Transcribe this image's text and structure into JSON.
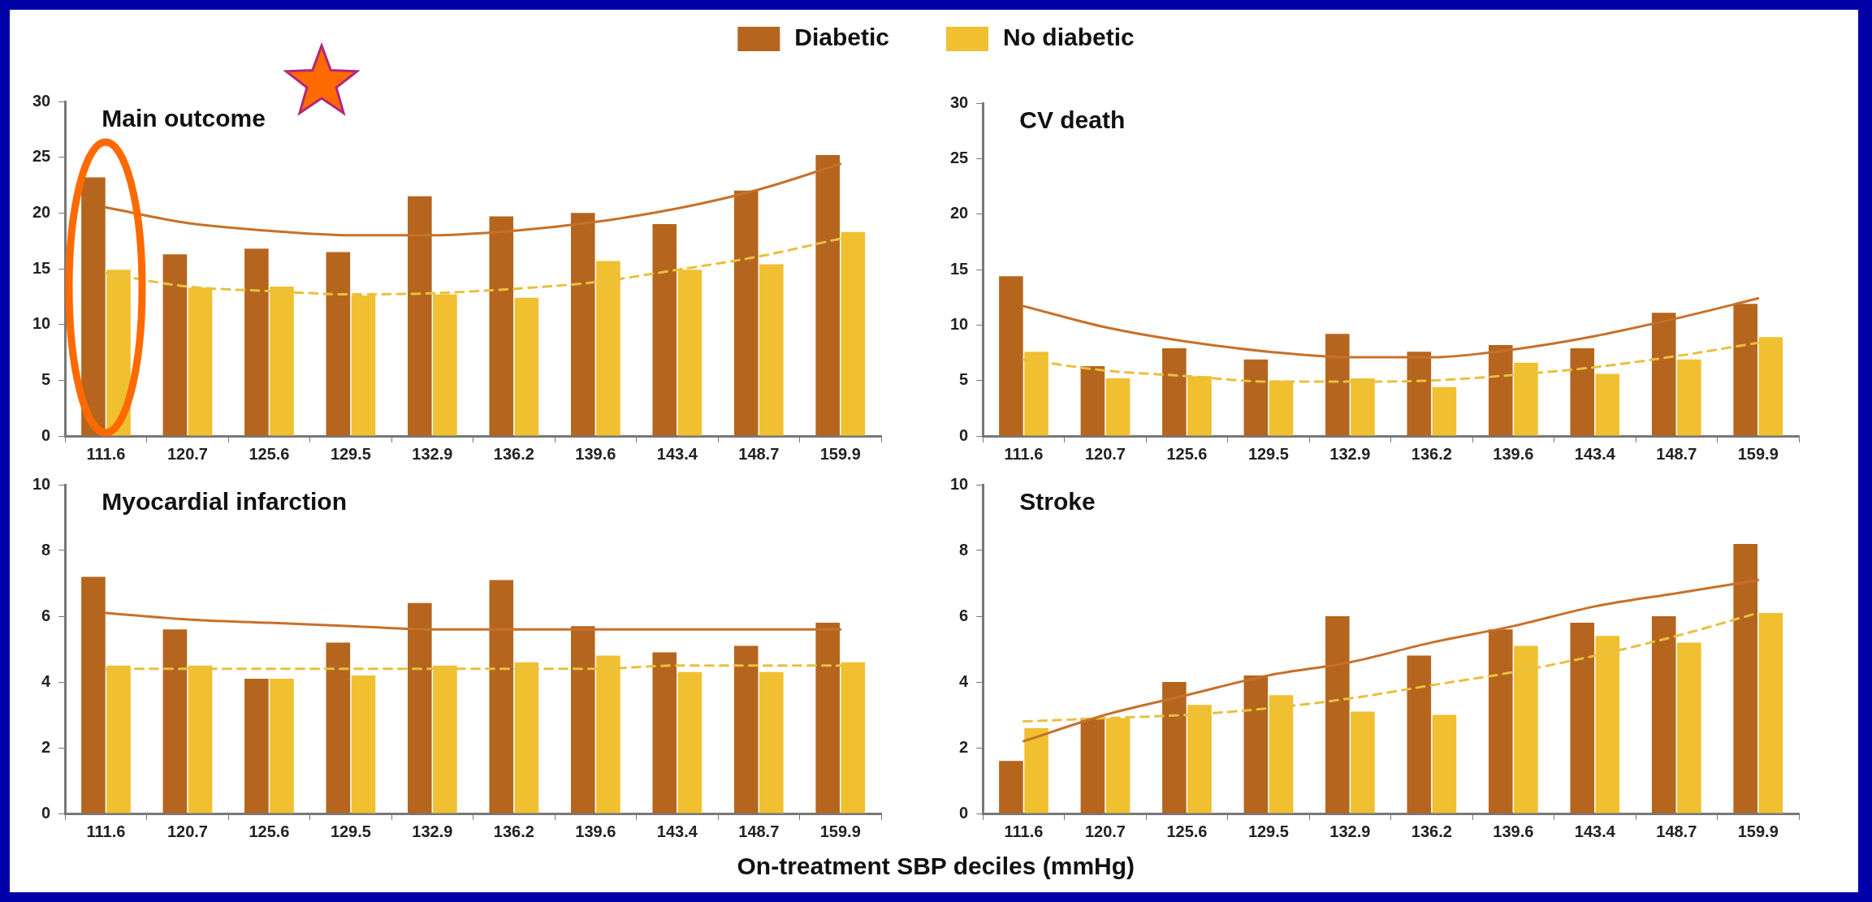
{
  "chart_data": [
    {
      "type": "bar",
      "title": "Main outcome",
      "legend": "top",
      "categories": [
        "111.6",
        "120.7",
        "125.6",
        "129.5",
        "132.9",
        "136.2",
        "139.6",
        "143.4",
        "148.7",
        "159.9"
      ],
      "ylim": [
        0,
        30
      ],
      "yticks": [
        0,
        5,
        10,
        15,
        20,
        25,
        30
      ],
      "series": [
        {
          "name": "Diabetic",
          "color": "#b5651d",
          "values": [
            23.2,
            16.3,
            16.8,
            16.5,
            21.5,
            19.7,
            20.0,
            19.0,
            22.0,
            25.2
          ]
        },
        {
          "name": "No diabetic",
          "color": "#f0c030",
          "values": [
            14.9,
            13.3,
            13.4,
            12.6,
            12.7,
            12.4,
            15.7,
            14.9,
            15.4,
            18.3
          ]
        },
        {
          "type": "line",
          "color": "#c8702a",
          "line_style": "solid",
          "values": [
            20.5,
            19.1,
            18.4,
            18.0,
            18.0,
            18.4,
            19.2,
            20.4,
            22.1,
            24.4
          ]
        },
        {
          "type": "line",
          "color": "#e8c040",
          "line_style": "dashed",
          "values": [
            14.6,
            13.4,
            13.0,
            12.7,
            12.8,
            13.2,
            13.8,
            14.9,
            16.1,
            17.7
          ]
        }
      ]
    },
    {
      "type": "bar",
      "title": "CV death",
      "categories": [
        "111.6",
        "120.7",
        "125.6",
        "129.5",
        "132.9",
        "136.2",
        "139.6",
        "143.4",
        "148.7",
        "159.9"
      ],
      "ylim": [
        0,
        30
      ],
      "yticks": [
        0,
        5,
        10,
        15,
        20,
        25,
        30
      ],
      "series": [
        {
          "color": "#b5651d",
          "values": [
            14.4,
            6.3,
            7.9,
            6.9,
            9.2,
            7.6,
            8.2,
            7.9,
            11.1,
            11.9
          ]
        },
        {
          "color": "#f0c030",
          "values": [
            7.6,
            5.2,
            5.4,
            5.0,
            5.2,
            4.4,
            6.6,
            5.6,
            6.9,
            8.9
          ]
        },
        {
          "type": "line",
          "color": "#c8702a",
          "line_style": "solid",
          "values": [
            11.7,
            9.8,
            8.5,
            7.6,
            7.1,
            7.1,
            7.8,
            9.0,
            10.6,
            12.4
          ]
        },
        {
          "type": "line",
          "color": "#e8c040",
          "line_style": "dashed",
          "values": [
            6.9,
            5.9,
            5.4,
            4.9,
            4.9,
            5.0,
            5.5,
            6.2,
            7.2,
            8.4
          ]
        }
      ]
    },
    {
      "type": "bar",
      "title": "Myocardial infarction",
      "xlabel": "On-treatment SBP deciles (mmHg)",
      "categories": [
        "111.6",
        "120.7",
        "125.6",
        "129.5",
        "132.9",
        "136.2",
        "139.6",
        "143.4",
        "148.7",
        "159.9"
      ],
      "ylim": [
        0,
        10
      ],
      "yticks": [
        0,
        2,
        4,
        6,
        8,
        10
      ],
      "series": [
        {
          "color": "#b5651d",
          "values": [
            7.2,
            5.6,
            4.1,
            5.2,
            6.4,
            7.1,
            5.7,
            4.9,
            5.1,
            5.8
          ]
        },
        {
          "color": "#f0c030",
          "values": [
            4.5,
            4.5,
            4.1,
            4.2,
            4.5,
            4.6,
            4.8,
            4.3,
            4.3,
            4.6
          ]
        },
        {
          "type": "line",
          "color": "#c8702a",
          "line_style": "solid",
          "values": [
            6.1,
            5.9,
            5.8,
            5.7,
            5.6,
            5.6,
            5.6,
            5.6,
            5.6,
            5.6
          ]
        },
        {
          "type": "line",
          "color": "#e8c040",
          "line_style": "dashed",
          "values": [
            4.4,
            4.4,
            4.4,
            4.4,
            4.4,
            4.4,
            4.4,
            4.5,
            4.5,
            4.5
          ]
        }
      ]
    },
    {
      "type": "bar",
      "title": "Stroke",
      "categories": [
        "111.6",
        "120.7",
        "125.6",
        "129.5",
        "132.9",
        "136.2",
        "139.6",
        "143.4",
        "148.7",
        "159.9"
      ],
      "ylim": [
        0,
        10
      ],
      "yticks": [
        0,
        2,
        4,
        6,
        8,
        10
      ],
      "series": [
        {
          "color": "#b5651d",
          "values": [
            1.6,
            2.9,
            4.0,
            4.2,
            6.0,
            4.8,
            5.6,
            5.8,
            6.0,
            8.2
          ]
        },
        {
          "color": "#f0c030",
          "values": [
            2.6,
            2.9,
            3.3,
            3.6,
            3.1,
            3.0,
            5.1,
            5.4,
            5.2,
            6.1
          ]
        },
        {
          "type": "line",
          "color": "#c8702a",
          "line_style": "solid",
          "values": [
            2.2,
            3.0,
            3.6,
            4.2,
            4.6,
            5.2,
            5.7,
            6.3,
            6.7,
            7.1
          ]
        },
        {
          "type": "line",
          "color": "#e8c040",
          "line_style": "dashed",
          "values": [
            2.8,
            2.9,
            3.0,
            3.2,
            3.5,
            3.9,
            4.3,
            4.8,
            5.4,
            6.1
          ]
        }
      ]
    }
  ]
}
